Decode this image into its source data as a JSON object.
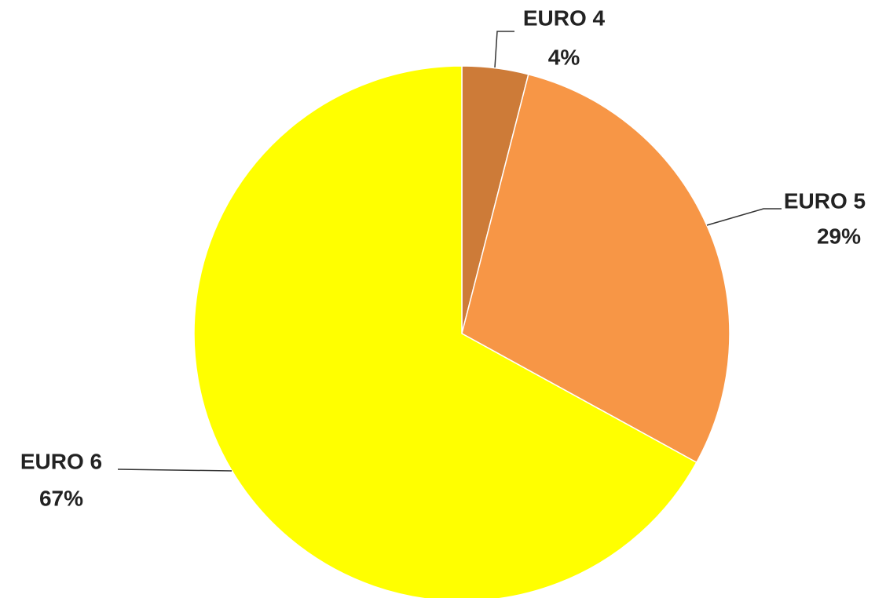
{
  "chart_data": {
    "type": "pie",
    "categories": [
      "EURO 4",
      "EURO 5",
      "EURO 6"
    ],
    "values": [
      4,
      29,
      67
    ],
    "value_labels": [
      "4%",
      "29%",
      "67%"
    ],
    "colors": [
      "#cd7b38",
      "#f79646",
      "#ffff00"
    ]
  }
}
